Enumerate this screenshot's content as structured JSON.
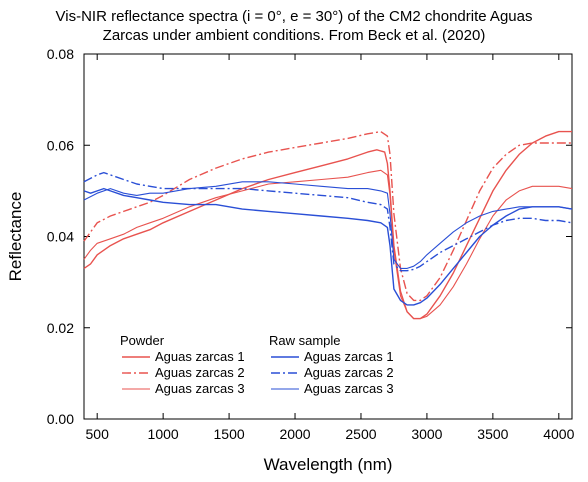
{
  "chart_data": {
    "type": "line",
    "title_lines": [
      "Vis-NIR reflectance spectra (i = 0°, e = 30°) of the CM2 chondrite Aguas",
      "Zarcas under ambient conditions. From Beck et al. (2020)"
    ],
    "xlabel": "Wavelength (nm)",
    "ylabel": "Reflectance",
    "xlim": [
      400,
      4100
    ],
    "ylim": [
      0.0,
      0.08
    ],
    "xticks": [
      500,
      1000,
      1500,
      2000,
      2500,
      3000,
      3500,
      4000
    ],
    "yticks": [
      0.0,
      0.02,
      0.04,
      0.06,
      0.08
    ],
    "ytick_labels": [
      "0.00",
      "0.02",
      "0.04",
      "0.06",
      "0.08"
    ],
    "grid": false,
    "legend": {
      "placement": "bottom-left",
      "groups": [
        {
          "title": "Powder",
          "entries": [
            "Aguas zarcas 1",
            "Aguas zarcas 2",
            "Aguas zarcas 3"
          ]
        },
        {
          "title": "Raw sample",
          "entries": [
            "Aguas zarcas 1",
            "Aguas zarcas 2",
            "Aguas zarcas 3"
          ]
        }
      ]
    },
    "colors": {
      "powder": "#e8534f",
      "raw": "#2a4fd6"
    },
    "series": [
      {
        "name": "Aguas zarcas 1",
        "group": "Powder",
        "style": "solid",
        "color": "#e8534f",
        "x": [
          400,
          450,
          500,
          600,
          700,
          800,
          900,
          1000,
          1200,
          1400,
          1600,
          1800,
          2000,
          2200,
          2400,
          2550,
          2620,
          2680,
          2700,
          2720,
          2750,
          2800,
          2850,
          2900,
          2950,
          3000,
          3100,
          3200,
          3300,
          3400,
          3500,
          3600,
          3700,
          3800,
          3900,
          4000,
          4100
        ],
        "y": [
          0.033,
          0.034,
          0.036,
          0.038,
          0.0395,
          0.0405,
          0.0415,
          0.043,
          0.0455,
          0.048,
          0.0505,
          0.0525,
          0.054,
          0.0555,
          0.057,
          0.0585,
          0.059,
          0.0585,
          0.056,
          0.05,
          0.038,
          0.028,
          0.0235,
          0.022,
          0.022,
          0.023,
          0.027,
          0.032,
          0.038,
          0.044,
          0.05,
          0.0545,
          0.058,
          0.0605,
          0.062,
          0.063,
          0.063
        ]
      },
      {
        "name": "Aguas zarcas 2",
        "group": "Powder",
        "style": "dashdot",
        "color": "#e8534f",
        "x": [
          400,
          500,
          600,
          700,
          800,
          900,
          1000,
          1200,
          1400,
          1600,
          1800,
          2000,
          2200,
          2400,
          2550,
          2650,
          2700,
          2720,
          2750,
          2800,
          2850,
          2900,
          2950,
          3000,
          3100,
          3200,
          3300,
          3400,
          3500,
          3600,
          3700,
          3800,
          3900,
          4000,
          4100
        ],
        "y": [
          0.039,
          0.043,
          0.0445,
          0.0455,
          0.0465,
          0.0475,
          0.049,
          0.0525,
          0.055,
          0.057,
          0.0585,
          0.0595,
          0.0605,
          0.0615,
          0.0625,
          0.063,
          0.062,
          0.058,
          0.045,
          0.033,
          0.0275,
          0.026,
          0.026,
          0.027,
          0.031,
          0.037,
          0.0435,
          0.05,
          0.055,
          0.058,
          0.06,
          0.0605,
          0.0605,
          0.0605,
          0.0605
        ]
      },
      {
        "name": "Aguas zarcas 3",
        "group": "Powder",
        "style": "solid-thin",
        "color": "#e8534f",
        "x": [
          400,
          450,
          500,
          600,
          700,
          800,
          900,
          1000,
          1200,
          1400,
          1600,
          1800,
          2000,
          2200,
          2400,
          2550,
          2650,
          2700,
          2720,
          2750,
          2800,
          2850,
          2900,
          2950,
          3000,
          3100,
          3200,
          3300,
          3400,
          3500,
          3600,
          3700,
          3800,
          3900,
          4000,
          4100
        ],
        "y": [
          0.035,
          0.037,
          0.0385,
          0.0395,
          0.0405,
          0.042,
          0.043,
          0.044,
          0.0465,
          0.0485,
          0.05,
          0.0515,
          0.052,
          0.0525,
          0.053,
          0.054,
          0.0545,
          0.0535,
          0.049,
          0.037,
          0.027,
          0.0235,
          0.022,
          0.022,
          0.0225,
          0.025,
          0.029,
          0.034,
          0.0395,
          0.0445,
          0.048,
          0.05,
          0.051,
          0.051,
          0.051,
          0.0505
        ]
      },
      {
        "name": "Aguas zarcas 1",
        "group": "Raw sample",
        "style": "solid",
        "color": "#2a4fd6",
        "x": [
          400,
          450,
          500,
          550,
          600,
          700,
          800,
          900,
          1000,
          1200,
          1400,
          1600,
          1800,
          2000,
          2200,
          2400,
          2550,
          2650,
          2700,
          2720,
          2750,
          2800,
          2850,
          2900,
          2950,
          3000,
          3100,
          3200,
          3300,
          3400,
          3500,
          3600,
          3700,
          3800,
          3900,
          4000,
          4100
        ],
        "y": [
          0.05,
          0.0495,
          0.05,
          0.0505,
          0.05,
          0.049,
          0.0485,
          0.048,
          0.0475,
          0.047,
          0.047,
          0.046,
          0.0455,
          0.045,
          0.0445,
          0.044,
          0.0435,
          0.043,
          0.042,
          0.038,
          0.0285,
          0.026,
          0.025,
          0.025,
          0.0255,
          0.0265,
          0.0295,
          0.033,
          0.0365,
          0.04,
          0.0425,
          0.0445,
          0.046,
          0.0465,
          0.0465,
          0.0465,
          0.046
        ]
      },
      {
        "name": "Aguas zarcas 2",
        "group": "Raw sample",
        "style": "dashdot",
        "color": "#2a4fd6",
        "x": [
          400,
          500,
          550,
          600,
          700,
          800,
          900,
          1000,
          1200,
          1400,
          1600,
          1800,
          2000,
          2200,
          2400,
          2550,
          2650,
          2700,
          2720,
          2750,
          2800,
          2850,
          2900,
          2950,
          3000,
          3100,
          3200,
          3300,
          3400,
          3500,
          3600,
          3700,
          3800,
          3900,
          4000,
          4100
        ],
        "y": [
          0.052,
          0.0535,
          0.054,
          0.0535,
          0.0525,
          0.0515,
          0.051,
          0.0505,
          0.0505,
          0.0505,
          0.0505,
          0.05,
          0.0495,
          0.049,
          0.0485,
          0.0475,
          0.047,
          0.046,
          0.042,
          0.034,
          0.0325,
          0.0325,
          0.0328,
          0.0335,
          0.0345,
          0.0365,
          0.038,
          0.0395,
          0.041,
          0.0425,
          0.0435,
          0.044,
          0.044,
          0.0435,
          0.0435,
          0.043
        ]
      },
      {
        "name": "Aguas zarcas 3",
        "group": "Raw sample",
        "style": "solid-thin",
        "color": "#2a4fd6",
        "x": [
          400,
          500,
          600,
          700,
          800,
          900,
          1000,
          1200,
          1400,
          1600,
          1800,
          2000,
          2200,
          2400,
          2550,
          2650,
          2700,
          2720,
          2750,
          2800,
          2850,
          2900,
          2950,
          3000,
          3100,
          3200,
          3300,
          3400,
          3500,
          3600,
          3700,
          3800,
          3900,
          4000,
          4100
        ],
        "y": [
          0.048,
          0.0495,
          0.0505,
          0.0495,
          0.049,
          0.0495,
          0.0495,
          0.0505,
          0.051,
          0.052,
          0.052,
          0.0515,
          0.051,
          0.0505,
          0.0505,
          0.05,
          0.0495,
          0.045,
          0.035,
          0.033,
          0.033,
          0.0335,
          0.0345,
          0.036,
          0.0385,
          0.041,
          0.043,
          0.0445,
          0.0455,
          0.046,
          0.0465,
          0.0465,
          0.0465,
          0.0465,
          0.046
        ]
      }
    ]
  }
}
